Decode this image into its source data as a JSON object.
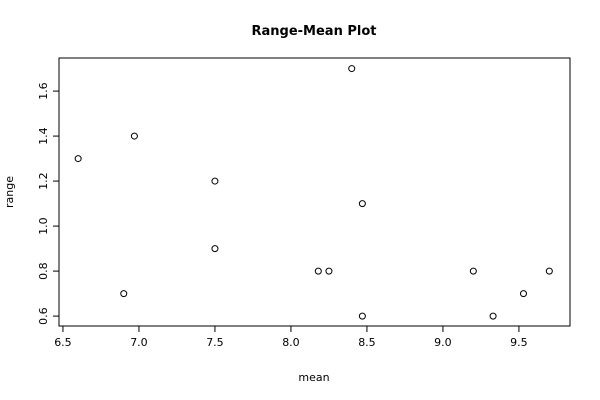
{
  "chart_data": {
    "type": "scatter",
    "title": "Range-Mean Plot",
    "x_label": "mean",
    "y_label": "range",
    "x": [
      6.6,
      6.97,
      6.9,
      7.5,
      7.5,
      8.18,
      8.25,
      8.4,
      8.47,
      8.47,
      9.2,
      9.33,
      9.53,
      9.7
    ],
    "values": [
      1.3,
      1.4,
      0.7,
      1.2,
      0.9,
      0.8,
      0.8,
      1.7,
      1.1,
      0.6,
      0.8,
      0.6,
      0.7,
      0.8
    ],
    "color": "#000000",
    "xlim": [
      6.474,
      9.836
    ],
    "ylim": [
      0.556,
      1.747
    ],
    "xticks": [
      6.5,
      {
        "value": 7,
        "label": "7.0"
      },
      7.5,
      {
        "value": 8,
        "label": "8.0"
      },
      8.5,
      {
        "value": 9,
        "label": "9.0"
      },
      9.5
    ],
    "yticks": [
      0.6,
      0.8,
      {
        "value": 1,
        "label": "1.0"
      },
      1.2,
      1.4,
      1.6
    ],
    "grid": false
  }
}
